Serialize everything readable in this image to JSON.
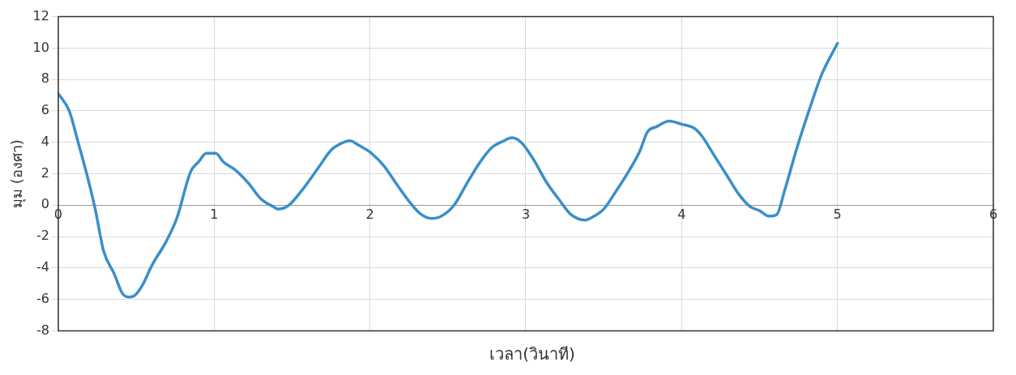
{
  "chart_data": {
    "type": "line",
    "xlabel": "เวลา(วินาที)",
    "ylabel": "มุม (องศา)",
    "xlim": [
      0,
      6
    ],
    "xticks": [
      0,
      1,
      2,
      3,
      4,
      5,
      6
    ],
    "ylim": [
      -8,
      12
    ],
    "yticks": [
      -8,
      -6,
      -4,
      -2,
      0,
      2,
      4,
      6,
      8,
      10,
      12
    ],
    "grid": true,
    "marker": "none",
    "series": [
      {
        "color": "#3a8fc8",
        "x": [
          0,
          0.07,
          0.13,
          0.19,
          0.24,
          0.29,
          0.36,
          0.41,
          0.45,
          0.49,
          0.54,
          0.6,
          0.69,
          0.76,
          0.85,
          0.9,
          0.95,
          1.01,
          1.06,
          1.14,
          1.22,
          1.3,
          1.38,
          1.41,
          1.48,
          1.56,
          1.67,
          1.75,
          1.82,
          1.87,
          1.93,
          2.01,
          2.09,
          2.17,
          2.25,
          2.33,
          2.4,
          2.45,
          2.54,
          2.62,
          2.7,
          2.78,
          2.86,
          2.91,
          2.97,
          3.05,
          3.13,
          3.21,
          3.29,
          3.38,
          3.43,
          3.5,
          3.58,
          3.66,
          3.73,
          3.78,
          3.84,
          3.92,
          4.0,
          4.08,
          4.13,
          4.21,
          4.29,
          4.37,
          4.44,
          4.5,
          4.56,
          4.61,
          4.66,
          4.74,
          4.82,
          4.9,
          5.0
        ],
        "values": [
          7.1,
          6.0,
          3.9,
          1.7,
          -0.4,
          -2.9,
          -4.4,
          -5.6,
          -5.85,
          -5.75,
          -5.1,
          -3.85,
          -2.35,
          -0.85,
          2.15,
          2.75,
          3.3,
          3.3,
          2.75,
          2.2,
          1.4,
          0.4,
          -0.1,
          -0.25,
          0.0,
          0.9,
          2.4,
          3.5,
          3.95,
          4.1,
          3.8,
          3.3,
          2.5,
          1.35,
          0.25,
          -0.6,
          -0.85,
          -0.75,
          0.0,
          1.35,
          2.65,
          3.65,
          4.1,
          4.3,
          4.0,
          2.9,
          1.5,
          0.4,
          -0.6,
          -0.95,
          -0.75,
          -0.25,
          0.9,
          2.15,
          3.4,
          4.65,
          5.0,
          5.35,
          5.15,
          4.9,
          4.4,
          3.15,
          1.9,
          0.65,
          -0.1,
          -0.35,
          -0.7,
          -0.6,
          0.9,
          3.65,
          6.1,
          8.35,
          10.3
        ]
      }
    ]
  }
}
